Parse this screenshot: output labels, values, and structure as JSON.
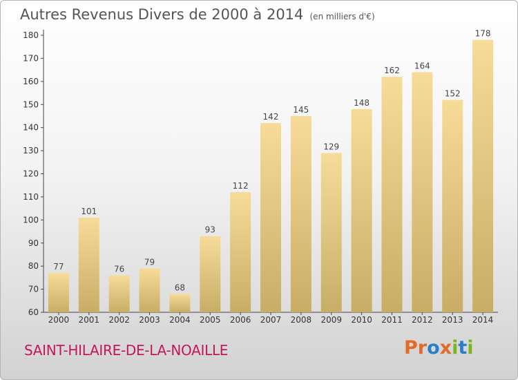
{
  "title": "Autres Revenus Divers de 2000 à 2014",
  "subtitle": "(en milliers d'€)",
  "commune": "SAINT-HILAIRE-DE-LA-NOAILLE",
  "logo": {
    "p1": "Pr",
    "p2": "o",
    "p3": "x",
    "p4": "i",
    "p5": "t",
    "p6": "i"
  },
  "colors": {
    "bar_light": "#f6dc98",
    "bar_dark": "#c8ad66",
    "commune": "#c2185b"
  },
  "chart_data": {
    "type": "bar",
    "categories": [
      "2000",
      "2001",
      "2002",
      "2003",
      "2004",
      "2005",
      "2006",
      "2007",
      "2008",
      "2009",
      "2010",
      "2011",
      "2012",
      "2013",
      "2014"
    ],
    "values": [
      77,
      101,
      76,
      79,
      68,
      93,
      112,
      142,
      145,
      129,
      148,
      162,
      164,
      152,
      178
    ],
    "ylim": [
      60,
      180
    ],
    "yticks": [
      60,
      70,
      80,
      90,
      100,
      110,
      120,
      130,
      140,
      150,
      160,
      170,
      180
    ],
    "grid": false,
    "legend": "none"
  }
}
